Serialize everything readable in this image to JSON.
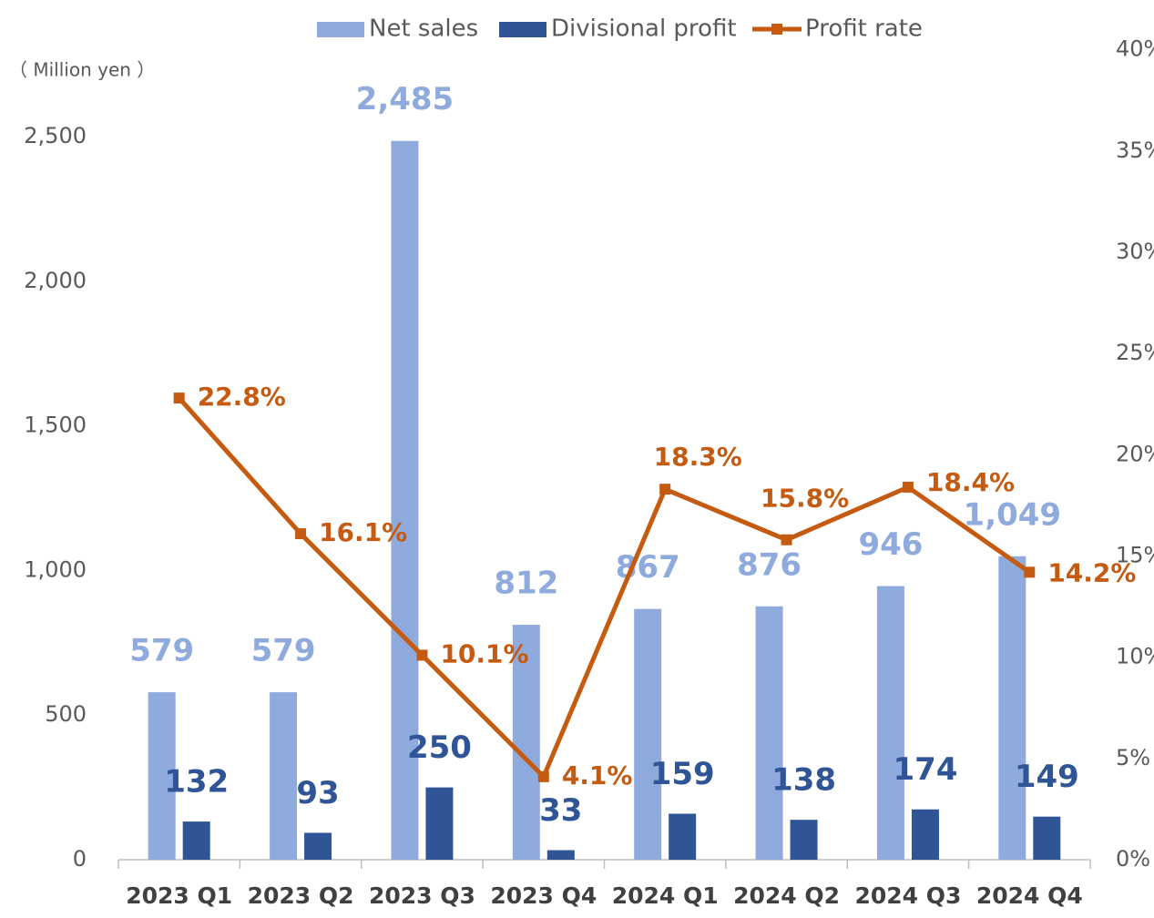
{
  "chart_data": {
    "type": "bar-line",
    "y_axis_label": "（ Million yen ）",
    "categories": [
      "2023 Q1",
      "2023 Q2",
      "2023 Q3",
      "2023 Q4",
      "2024 Q1",
      "2024 Q2",
      "2024 Q3",
      "2024 Q4"
    ],
    "series": [
      {
        "name": "Net sales",
        "color": "#8faadc",
        "type": "bar",
        "axis": "y",
        "values": [
          579,
          579,
          2485,
          812,
          867,
          876,
          946,
          1049
        ],
        "value_labels": [
          "579",
          "579",
          "2,485",
          "812",
          "867",
          "876",
          "946",
          "1,049"
        ]
      },
      {
        "name": "Divisional profit",
        "color": "#2f5597",
        "type": "bar",
        "axis": "y",
        "values": [
          132,
          93,
          250,
          33,
          159,
          138,
          174,
          149
        ]
      },
      {
        "name": "Profit rate",
        "color": "#c55a11",
        "type": "line",
        "axis": "y2",
        "values": [
          22.8,
          16.1,
          10.1,
          4.1,
          18.3,
          15.8,
          18.4,
          14.2
        ],
        "value_labels": [
          "22.8%",
          "16.1%",
          "10.1%",
          "4.1%",
          "18.3%",
          "15.8%",
          "18.4%",
          "14.2%"
        ]
      }
    ],
    "ylim": [
      0,
      2800
    ],
    "yticks": [
      0,
      500,
      {
        "value": 1000,
        "label": "1,000"
      },
      {
        "value": 1500,
        "label": "1,500"
      },
      {
        "value": 2000,
        "label": "2,000"
      },
      {
        "value": 2500,
        "label": "2,500"
      }
    ],
    "y2lim": [
      0,
      40
    ],
    "y2ticks": [
      {
        "value": 0,
        "label": "0%"
      },
      {
        "value": 5,
        "label": "5%"
      },
      {
        "value": 10,
        "label": "10%"
      },
      {
        "value": 15,
        "label": "15%"
      },
      {
        "value": 20,
        "label": "20%"
      },
      {
        "value": 25,
        "label": "25%"
      },
      {
        "value": 30,
        "label": "30%"
      },
      {
        "value": 35,
        "label": "35%"
      },
      {
        "value": 40,
        "label": "40%"
      }
    ],
    "legend": "top",
    "grid": false
  }
}
